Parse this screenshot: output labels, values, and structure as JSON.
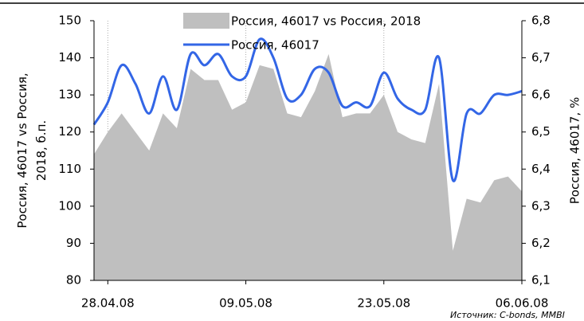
{
  "chart_data": {
    "type": "area-line",
    "legend": [
      "Россия, 46017 vs Россия, 2018",
      "Россия, 46017"
    ],
    "ylabel": "Россия, 46017 vs Россия, 2018, б.п.",
    "y2label": "Россия, 46017, %",
    "source": "Источник: C-bonds, MMBI",
    "categories": [
      null,
      "28.04.08",
      null,
      null,
      null,
      null,
      null,
      null,
      null,
      null,
      null,
      "09.05.08",
      null,
      null,
      null,
      null,
      null,
      null,
      null,
      null,
      null,
      "23.05.08",
      null,
      null,
      null,
      null,
      null,
      null,
      null,
      null,
      null,
      "06.06.08"
    ],
    "series": [
      {
        "name": "Россия, 46017 vs Россия, 2018",
        "color": "#bfbfbf",
        "type": "area",
        "values": [
          114,
          120,
          125,
          120,
          115,
          125,
          121,
          137,
          134,
          134,
          126,
          128,
          138,
          137,
          125,
          124,
          131,
          141,
          124,
          125,
          125,
          130,
          120,
          118,
          117,
          133,
          88,
          102,
          101,
          107,
          108,
          104
        ]
      },
      {
        "name": "Россия, 46017",
        "color": "#3366e6",
        "type": "line",
        "axis": "y2",
        "values": [
          6.52,
          6.58,
          6.68,
          6.63,
          6.55,
          6.65,
          6.56,
          6.71,
          6.68,
          6.71,
          6.65,
          6.65,
          6.75,
          6.7,
          6.59,
          6.6,
          6.67,
          6.66,
          6.57,
          6.58,
          6.57,
          6.66,
          6.59,
          6.56,
          6.56,
          6.7,
          6.37,
          6.55,
          6.55,
          6.6,
          6.6,
          6.61
        ]
      }
    ],
    "ylim": [
      80,
      150
    ],
    "yticks": [
      80,
      90,
      100,
      110,
      120,
      130,
      140,
      150
    ],
    "y2lim": [
      6.1,
      6.8
    ],
    "y2ticks": [
      {
        "value": 6.1,
        "label": "6,1"
      },
      {
        "value": 6.2,
        "label": "6,2"
      },
      {
        "value": 6.3,
        "label": "6,3"
      },
      {
        "value": 6.4,
        "label": "6,4"
      },
      {
        "value": 6.5,
        "label": "6,5"
      },
      {
        "value": 6.6,
        "label": "6,6"
      },
      {
        "value": 6.7,
        "label": "6,7"
      },
      {
        "value": 6.8,
        "label": "6,8"
      }
    ],
    "xgrid": true
  }
}
